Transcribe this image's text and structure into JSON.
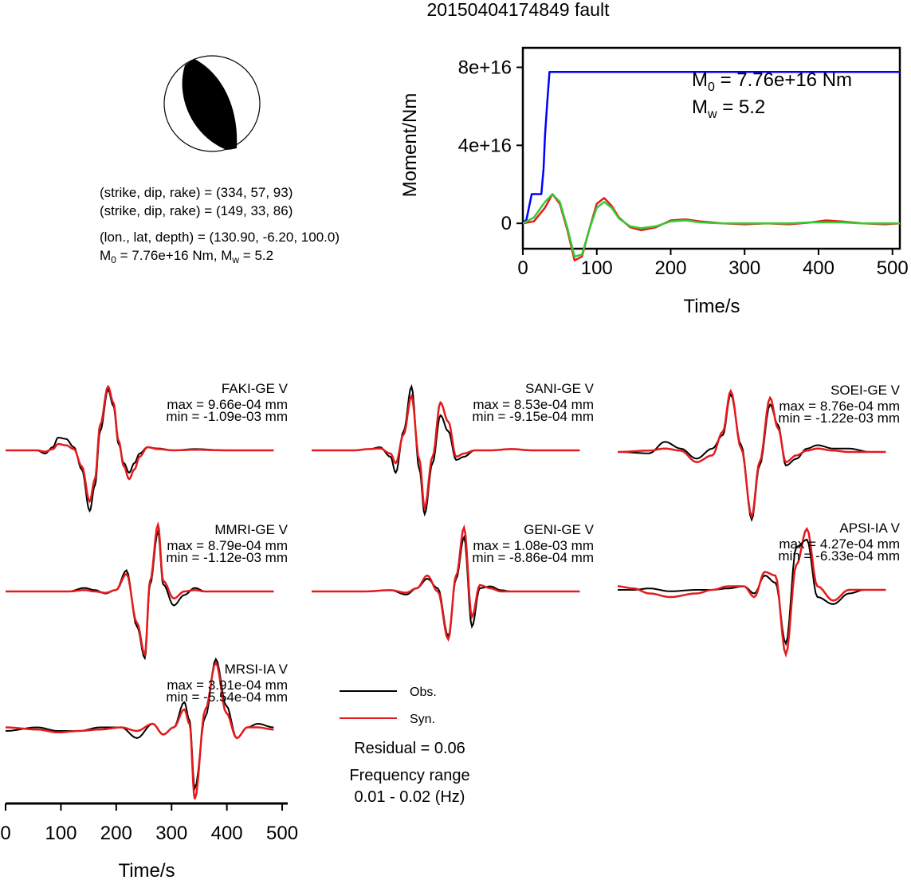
{
  "title": "20150404174849 fault",
  "mechanism": {
    "planes": [
      {
        "prefix": "(strike, dip, rake) = ",
        "values": "(334, 57, 93)"
      },
      {
        "prefix": "(strike, dip, rake) = ",
        "values": "(149, 33, 86)"
      }
    ],
    "location": "(lon., lat, depth) = (130.90, -6.20, 100.0)",
    "moment_line": {
      "m0_sym": "M",
      "m0_sub": "0",
      "m0_val": " = 7.76e+16 Nm, ",
      "mw_sym": "M",
      "mw_sub": "w",
      "mw_val": " = 5.2"
    }
  },
  "moment_panel": {
    "ylabel": "Moment/Nm",
    "xlabel": "Time/s",
    "m0_annotation": {
      "sym": "M",
      "sub": "0",
      "val": " = 7.76e+16 Nm"
    },
    "mw_annotation": {
      "sym": "M",
      "sub": "w",
      "val": " = 5.2"
    }
  },
  "stations": [
    {
      "label": "FAKI-GE V",
      "max": "max = 9.66e-04 mm",
      "min": "min = -1.09e-03 mm"
    },
    {
      "label": "SANI-GE V",
      "max": "max = 8.53e-04 mm",
      "min": "min = -9.15e-04 mm"
    },
    {
      "label": "SOEI-GE V",
      "max": "max = 8.76e-04 mm",
      "min": "min = -1.22e-03 mm"
    },
    {
      "label": "MMRI-GE V",
      "max": "max = 8.79e-04 mm",
      "min": "min = -1.12e-03 mm"
    },
    {
      "label": "GENI-GE V",
      "max": "max = 1.08e-03 mm",
      "min": "min = -8.86e-04 mm"
    },
    {
      "label": "APSI-IA V",
      "max": "max = 4.27e-04 mm",
      "min": "min = -6.33e-04 mm"
    },
    {
      "label": "MRSI-IA V",
      "max": "max = 3.91e-04 mm",
      "min": "min = -5.54e-04 mm"
    }
  ],
  "legend": {
    "obs": "Obs.",
    "syn": "Syn."
  },
  "residual": "Residual = 0.06",
  "freq_title": "Frequency range",
  "freq_range": "0.01 - 0.02 (Hz)",
  "waveform_xlabel": "Time/s",
  "colors": {
    "obs": "#000000",
    "syn": "#e41a1c",
    "moment": "#0000ff",
    "mrf_green": "#33cc33",
    "mrf_red": "#e41a1c"
  },
  "chart_data": [
    {
      "type": "line",
      "title": "",
      "xlabel": "Time/s",
      "ylabel": "Moment/Nm",
      "xlim": [
        0,
        510
      ],
      "ylim": [
        -1.3e+16,
        9e+16
      ],
      "xticks": [
        0,
        100,
        200,
        300,
        400,
        500
      ],
      "yticks": [
        0,
        4e+16,
        8e+16
      ],
      "ytick_labels": [
        "0",
        "4e+16",
        "8e+16"
      ],
      "series": [
        {
          "color": "#0000ff",
          "x": [
            0,
            5,
            12,
            25,
            28,
            30,
            33,
            36,
            40,
            510
          ],
          "y": [
            0,
            2000000000000000.0,
            1.5e+16,
            1.5e+16,
            2.8e+16,
            4.5e+16,
            6.2e+16,
            7.76e+16,
            7.76e+16,
            7.76e+16
          ]
        },
        {
          "color": "#e41a1c",
          "x": [
            0,
            15,
            30,
            40,
            50,
            60,
            70,
            80,
            90,
            100,
            110,
            120,
            130,
            145,
            160,
            180,
            200,
            220,
            240,
            270,
            300,
            330,
            360,
            390,
            410,
            430,
            460,
            490,
            510
          ],
          "y": [
            0,
            1000000000000000.0,
            8000000000000000.0,
            1.5e+16,
            1e+16,
            -3000000000000000.0,
            -1.9e+16,
            -1.7e+16,
            -3000000000000000.0,
            1e+16,
            1.3e+16,
            9000000000000000.0,
            3000000000000000.0,
            -2000000000000000.0,
            -3500000000000000.0,
            -2000000000000000.0,
            1500000000000000.0,
            2000000000000000.0,
            1000000000000000.0,
            0,
            -500000000000000.0,
            0,
            -500000000000000.0,
            500000000000000.0,
            1500000000000000.0,
            1000000000000000.0,
            0,
            -500000000000000.0,
            0
          ]
        },
        {
          "color": "#33cc33",
          "x": [
            0,
            15,
            30,
            40,
            50,
            60,
            70,
            80,
            90,
            100,
            110,
            120,
            130,
            145,
            160,
            180,
            200,
            220,
            240,
            270,
            300,
            330,
            360,
            390,
            410,
            430,
            460,
            490,
            510
          ],
          "y": [
            0,
            3000000000000000.0,
            1.1e+16,
            1.5e+16,
            1.1e+16,
            -2000000000000000.0,
            -1.7e+16,
            -1.6e+16,
            -3000000000000000.0,
            8000000000000000.0,
            1.1e+16,
            8000000000000000.0,
            2500000000000000.0,
            -1500000000000000.0,
            -2500000000000000.0,
            -1500000000000000.0,
            1000000000000000.0,
            1500000000000000.0,
            500000000000000.0,
            0,
            0,
            0,
            0,
            500000000000000.0,
            500000000000000.0,
            500000000000000.0,
            0,
            0,
            0
          ]
        }
      ]
    },
    {
      "type": "line",
      "title": "",
      "xlabel": "Time/s",
      "xlim": [
        0,
        510
      ],
      "xticks": [
        0,
        100,
        200,
        300,
        400,
        500
      ],
      "note": "Normalized waveforms per station; obs = black, syn = red",
      "traces": [
        {
          "station": "FAKI-GE V",
          "x": [
            0,
            60,
            75,
            90,
            100,
            115,
            130,
            145,
            160,
            170,
            180,
            195,
            205,
            215,
            225,
            235,
            245,
            255,
            270,
            290,
            320,
            360,
            420,
            510
          ],
          "obs": [
            0,
            0,
            -0.05,
            0.05,
            0.2,
            0.18,
            0.05,
            -0.3,
            -0.95,
            -0.55,
            0.3,
            0.95,
            0.7,
            0.1,
            -0.2,
            -0.35,
            -0.2,
            -0.05,
            0.05,
            0.03,
            0,
            0.02,
            0,
            0
          ],
          "syn": [
            0,
            0,
            -0.02,
            0.02,
            0.1,
            0.08,
            0.02,
            -0.25,
            -0.8,
            -0.45,
            0.4,
            1.0,
            0.75,
            0.15,
            -0.25,
            -0.45,
            -0.3,
            -0.1,
            0.05,
            0.02,
            0,
            0.01,
            0,
            0
          ]
        },
        {
          "station": "SANI-GE V",
          "x": [
            0,
            80,
            110,
            130,
            150,
            160,
            175,
            190,
            205,
            215,
            230,
            245,
            260,
            275,
            290,
            310,
            340,
            380,
            420,
            510
          ],
          "obs": [
            0,
            0,
            0.02,
            0.05,
            -0.1,
            -0.35,
            0.3,
            1.0,
            -0.3,
            -1.0,
            -0.2,
            0.55,
            0.3,
            -0.15,
            -0.1,
            0,
            0,
            0.02,
            0,
            0
          ],
          "syn": [
            0,
            0,
            0.02,
            0.03,
            -0.05,
            -0.2,
            0.25,
            0.85,
            -0.15,
            -0.9,
            -0.1,
            0.75,
            0.45,
            -0.1,
            -0.05,
            0,
            0,
            0.02,
            0,
            0
          ],
          "obs_gain": 0.8
        },
        {
          "station": "SOEI-GE V",
          "x": [
            0,
            60,
            90,
            120,
            150,
            180,
            200,
            215,
            235,
            255,
            270,
            290,
            305,
            320,
            340,
            360,
            380,
            410,
            440,
            480,
            510
          ],
          "obs": [
            0,
            -0.02,
            0.15,
            0.05,
            -0.1,
            0.05,
            0.25,
            0.85,
            0.1,
            -1.0,
            -0.2,
            0.7,
            0.4,
            -0.2,
            -0.1,
            0.05,
            0.1,
            0.05,
            0.05,
            0,
            0
          ],
          "syn": [
            0,
            0.02,
            0.05,
            0.02,
            -0.15,
            -0.05,
            0.3,
            0.9,
            0.05,
            -0.95,
            -0.15,
            0.8,
            0.35,
            -0.15,
            -0.05,
            0.02,
            0.05,
            0.02,
            0,
            0,
            0
          ]
        },
        {
          "station": "MMRI-GE V",
          "x": [
            0,
            120,
            150,
            170,
            190,
            210,
            230,
            250,
            265,
            275,
            290,
            300,
            320,
            340,
            360,
            380,
            420,
            470,
            510
          ],
          "obs": [
            0,
            0,
            0.05,
            0.02,
            -0.03,
            0.02,
            0.3,
            -0.5,
            -0.95,
            0.1,
            0.85,
            0.1,
            -0.2,
            -0.05,
            0.05,
            0,
            0,
            0,
            0
          ],
          "syn": [
            0,
            0,
            0.02,
            0,
            -0.02,
            0.02,
            0.25,
            -0.45,
            -0.9,
            0.15,
            0.95,
            0.15,
            -0.1,
            0,
            0.02,
            0,
            0,
            0,
            0
          ],
          "offset_s": 30
        },
        {
          "station": "GENI-GE V",
          "x": [
            0,
            100,
            150,
            180,
            200,
            220,
            240,
            260,
            275,
            290,
            305,
            320,
            340,
            360,
            380,
            410,
            450,
            510
          ],
          "obs": [
            0,
            0,
            0.02,
            -0.05,
            0.05,
            0.2,
            0.05,
            -0.7,
            0.2,
            0.85,
            -0.55,
            0.05,
            0.08,
            0.02,
            0,
            0,
            0,
            0
          ],
          "syn": [
            0,
            0,
            0.02,
            -0.02,
            0.05,
            0.25,
            0.0,
            -0.75,
            0.25,
            1.0,
            -0.4,
            0.1,
            0.05,
            0,
            0,
            0,
            0,
            0
          ],
          "offset_s": 60
        },
        {
          "station": "APSI-IA V",
          "x": [
            0,
            30,
            60,
            100,
            150,
            180,
            210,
            240,
            260,
            280,
            300,
            320,
            340,
            360,
            380,
            410,
            440,
            470,
            510
          ],
          "obs": [
            0,
            0,
            0.02,
            -0.02,
            0,
            0,
            0.02,
            0.05,
            -0.05,
            0.2,
            0.1,
            -0.75,
            0.6,
            0.7,
            -0.1,
            -0.2,
            -0.05,
            0,
            0
          ],
          "syn": [
            0.05,
            0.02,
            -0.05,
            -0.1,
            -0.05,
            0,
            0.05,
            0.05,
            -0.1,
            0.25,
            0.2,
            -0.9,
            0.35,
            0.85,
            0.05,
            -0.15,
            0,
            0,
            0
          ],
          "offset_s": 60
        },
        {
          "station": "MRSI-IA V",
          "x": [
            0,
            60,
            100,
            140,
            180,
            220,
            250,
            280,
            300,
            320,
            340,
            350,
            360,
            380,
            400,
            420,
            440,
            460,
            480,
            510
          ],
          "obs": [
            0,
            0.05,
            0,
            0,
            0.05,
            0.05,
            -0.1,
            0.1,
            -0.05,
            0.05,
            0.4,
            0.15,
            -0.8,
            0.2,
            1.0,
            0.35,
            -0.1,
            0.05,
            0.1,
            0.05
          ],
          "syn": [
            0.05,
            0.02,
            -0.02,
            0,
            0.02,
            0.05,
            0,
            0.1,
            -0.05,
            0.05,
            0.3,
            0.1,
            -0.95,
            0.3,
            0.95,
            0.25,
            -0.1,
            0.05,
            0.05,
            0.02
          ],
          "offset_s": 60
        }
      ]
    }
  ]
}
